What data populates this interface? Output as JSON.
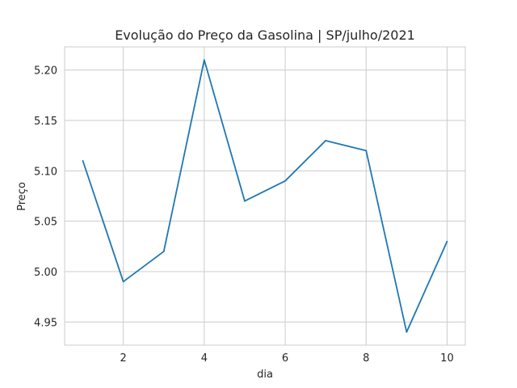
{
  "chart_data": {
    "type": "line",
    "title": "Evolução do Preço da Gasolina | SP/julho/2021",
    "xlabel": "dia",
    "ylabel": "Preço",
    "x": [
      1,
      2,
      3,
      4,
      5,
      6,
      7,
      8,
      9,
      10
    ],
    "series": [
      {
        "values": [
          5.11,
          4.99,
          5.02,
          5.21,
          5.07,
          5.09,
          5.13,
          5.12,
          4.94,
          5.03
        ]
      }
    ],
    "xlim": [
      0.55,
      10.45
    ],
    "ylim": [
      4.927,
      5.223
    ],
    "xticks": [
      "2",
      "4",
      "6",
      "8",
      "10"
    ],
    "yticks": [
      "4.95",
      "5.00",
      "5.05",
      "5.10",
      "5.15",
      "5.20"
    ],
    "grid": true,
    "colors": {
      "line": "#1f77b4",
      "grid": "#cccccc",
      "spine": "#cccccc",
      "text": "#262626"
    }
  }
}
